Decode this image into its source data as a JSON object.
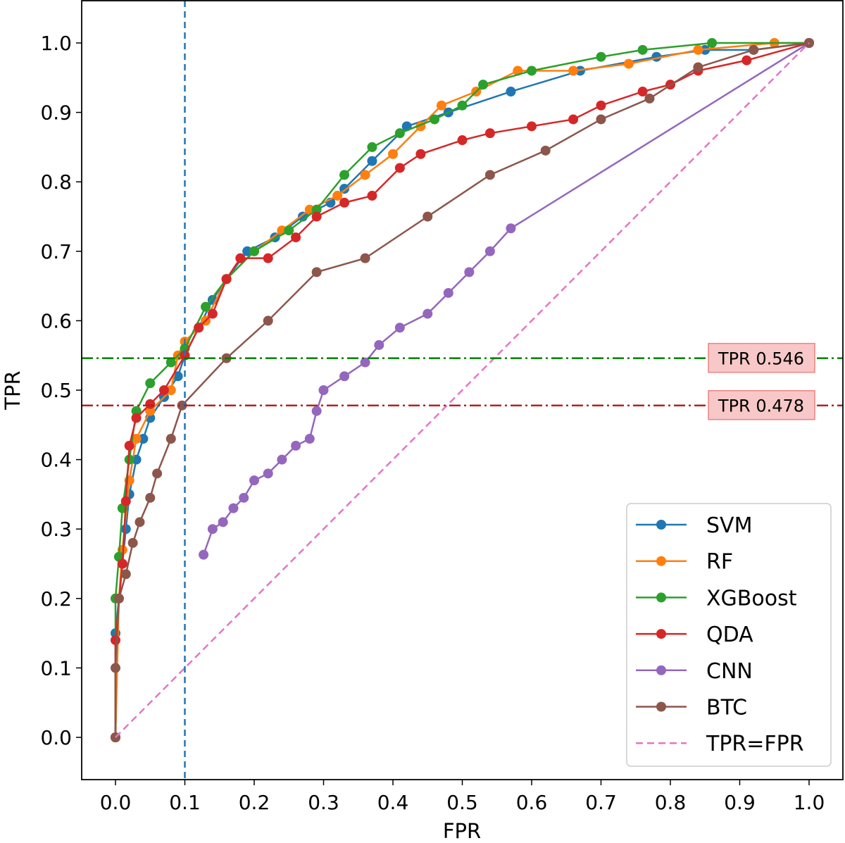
{
  "chart_data": {
    "type": "line",
    "title": "",
    "xlabel": "FPR",
    "ylabel": "TPR",
    "xlim": [
      -0.05,
      1.05
    ],
    "ylim": [
      -0.06,
      1.06
    ],
    "xticks": [
      "0.0",
      "0.1",
      "0.2",
      "0.3",
      "0.4",
      "0.5",
      "0.6",
      "0.7",
      "0.8",
      "0.9",
      "1.0"
    ],
    "yticks": [
      "0.0",
      "0.1",
      "0.2",
      "0.3",
      "0.4",
      "0.5",
      "0.6",
      "0.7",
      "0.8",
      "0.9",
      "1.0"
    ],
    "legend_position": "lower-right",
    "series": [
      {
        "name": "SVM",
        "color": "#1f77b4",
        "marker": "circle",
        "points": [
          [
            0,
            0
          ],
          [
            0,
            0.15
          ],
          [
            0.005,
            0.2
          ],
          [
            0.01,
            0.25
          ],
          [
            0.015,
            0.3
          ],
          [
            0.02,
            0.35
          ],
          [
            0.03,
            0.4
          ],
          [
            0.04,
            0.43
          ],
          [
            0.05,
            0.46
          ],
          [
            0.07,
            0.49
          ],
          [
            0.09,
            0.52
          ],
          [
            0.1,
            0.55
          ],
          [
            0.12,
            0.59
          ],
          [
            0.14,
            0.63
          ],
          [
            0.16,
            0.66
          ],
          [
            0.19,
            0.7
          ],
          [
            0.23,
            0.72
          ],
          [
            0.27,
            0.75
          ],
          [
            0.31,
            0.77
          ],
          [
            0.33,
            0.79
          ],
          [
            0.37,
            0.83
          ],
          [
            0.42,
            0.88
          ],
          [
            0.48,
            0.9
          ],
          [
            0.57,
            0.93
          ],
          [
            0.67,
            0.96
          ],
          [
            0.78,
            0.98
          ],
          [
            0.85,
            0.99
          ],
          [
            0.92,
            0.99
          ],
          [
            1,
            1
          ]
        ]
      },
      {
        "name": "RF",
        "color": "#ff7f0e",
        "marker": "circle",
        "points": [
          [
            0,
            0
          ],
          [
            0.005,
            0.2
          ],
          [
            0.01,
            0.27
          ],
          [
            0.02,
            0.37
          ],
          [
            0.03,
            0.43
          ],
          [
            0.05,
            0.47
          ],
          [
            0.08,
            0.5
          ],
          [
            0.09,
            0.55
          ],
          [
            0.1,
            0.57
          ],
          [
            0.13,
            0.6
          ],
          [
            0.16,
            0.66
          ],
          [
            0.2,
            0.7
          ],
          [
            0.24,
            0.73
          ],
          [
            0.28,
            0.76
          ],
          [
            0.32,
            0.78
          ],
          [
            0.36,
            0.81
          ],
          [
            0.4,
            0.84
          ],
          [
            0.44,
            0.88
          ],
          [
            0.47,
            0.91
          ],
          [
            0.52,
            0.93
          ],
          [
            0.58,
            0.96
          ],
          [
            0.66,
            0.96
          ],
          [
            0.74,
            0.97
          ],
          [
            0.84,
            0.99
          ],
          [
            0.95,
            1
          ],
          [
            1,
            1
          ]
        ]
      },
      {
        "name": "XGBoost",
        "color": "#2ca02c",
        "marker": "circle",
        "points": [
          [
            0,
            0
          ],
          [
            0,
            0.2
          ],
          [
            0.005,
            0.26
          ],
          [
            0.01,
            0.33
          ],
          [
            0.02,
            0.4
          ],
          [
            0.03,
            0.47
          ],
          [
            0.05,
            0.51
          ],
          [
            0.08,
            0.54
          ],
          [
            0.1,
            0.56
          ],
          [
            0.13,
            0.62
          ],
          [
            0.16,
            0.66
          ],
          [
            0.2,
            0.7
          ],
          [
            0.25,
            0.73
          ],
          [
            0.29,
            0.76
          ],
          [
            0.33,
            0.81
          ],
          [
            0.37,
            0.85
          ],
          [
            0.41,
            0.87
          ],
          [
            0.46,
            0.89
          ],
          [
            0.5,
            0.91
          ],
          [
            0.53,
            0.94
          ],
          [
            0.6,
            0.96
          ],
          [
            0.7,
            0.98
          ],
          [
            0.76,
            0.99
          ],
          [
            0.86,
            1
          ],
          [
            1,
            1
          ]
        ]
      },
      {
        "name": "QDA",
        "color": "#d62728",
        "marker": "circle",
        "points": [
          [
            0,
            0
          ],
          [
            0,
            0.14
          ],
          [
            0.01,
            0.25
          ],
          [
            0.015,
            0.34
          ],
          [
            0.02,
            0.42
          ],
          [
            0.03,
            0.46
          ],
          [
            0.05,
            0.48
          ],
          [
            0.07,
            0.5
          ],
          [
            0.1,
            0.55
          ],
          [
            0.12,
            0.59
          ],
          [
            0.14,
            0.61
          ],
          [
            0.16,
            0.66
          ],
          [
            0.18,
            0.69
          ],
          [
            0.22,
            0.69
          ],
          [
            0.26,
            0.72
          ],
          [
            0.29,
            0.75
          ],
          [
            0.33,
            0.77
          ],
          [
            0.37,
            0.78
          ],
          [
            0.41,
            0.82
          ],
          [
            0.44,
            0.84
          ],
          [
            0.5,
            0.86
          ],
          [
            0.54,
            0.87
          ],
          [
            0.6,
            0.88
          ],
          [
            0.66,
            0.89
          ],
          [
            0.7,
            0.91
          ],
          [
            0.76,
            0.93
          ],
          [
            0.8,
            0.94
          ],
          [
            0.84,
            0.96
          ],
          [
            0.91,
            0.975
          ],
          [
            1,
            1
          ]
        ]
      },
      {
        "name": "CNN",
        "color": "#9467bd",
        "marker": "circle",
        "points": [
          [
            0.127,
            0.263
          ],
          [
            0.14,
            0.3
          ],
          [
            0.155,
            0.31
          ],
          [
            0.17,
            0.33
          ],
          [
            0.185,
            0.345
          ],
          [
            0.2,
            0.37
          ],
          [
            0.22,
            0.38
          ],
          [
            0.24,
            0.4
          ],
          [
            0.26,
            0.42
          ],
          [
            0.28,
            0.43
          ],
          [
            0.29,
            0.47
          ],
          [
            0.3,
            0.5
          ],
          [
            0.33,
            0.52
          ],
          [
            0.36,
            0.54
          ],
          [
            0.38,
            0.565
          ],
          [
            0.41,
            0.59
          ],
          [
            0.45,
            0.61
          ],
          [
            0.48,
            0.64
          ],
          [
            0.51,
            0.67
          ],
          [
            0.54,
            0.7
          ],
          [
            0.57,
            0.733
          ],
          [
            1,
            1
          ]
        ]
      },
      {
        "name": "BTC",
        "color": "#8c564b",
        "marker": "circle",
        "points": [
          [
            0,
            0
          ],
          [
            0,
            0.1
          ],
          [
            0.005,
            0.2
          ],
          [
            0.015,
            0.235
          ],
          [
            0.025,
            0.28
          ],
          [
            0.035,
            0.31
          ],
          [
            0.05,
            0.345
          ],
          [
            0.06,
            0.38
          ],
          [
            0.08,
            0.43
          ],
          [
            0.096,
            0.478
          ],
          [
            0.16,
            0.546
          ],
          [
            0.22,
            0.6
          ],
          [
            0.29,
            0.67
          ],
          [
            0.36,
            0.69
          ],
          [
            0.45,
            0.75
          ],
          [
            0.54,
            0.81
          ],
          [
            0.62,
            0.845
          ],
          [
            0.7,
            0.89
          ],
          [
            0.77,
            0.92
          ],
          [
            0.84,
            0.965
          ],
          [
            0.92,
            0.99
          ],
          [
            1,
            1
          ]
        ]
      },
      {
        "name": "TPR=FPR",
        "color": "#e377c2",
        "marker": "none",
        "dashed": true,
        "points": [
          [
            0,
            0
          ],
          [
            1,
            1
          ]
        ]
      }
    ],
    "reference_lines": [
      {
        "type": "vertical",
        "x": 0.1,
        "color": "#1f77b4",
        "style": "dashed"
      },
      {
        "type": "horizontal",
        "y": 0.546,
        "color": "#008000",
        "style": "dashdot",
        "label": "TPR 0.546"
      },
      {
        "type": "horizontal",
        "y": 0.478,
        "color": "#b22222",
        "style": "dashdot",
        "label": "TPR 0.478"
      }
    ],
    "annotation_box_color": "#f8c8c8"
  }
}
